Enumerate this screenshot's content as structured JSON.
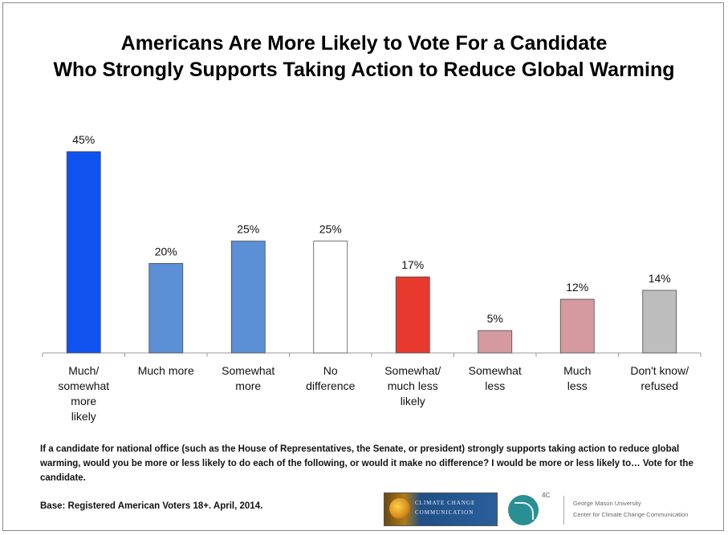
{
  "title": {
    "line1": "Americans Are More Likely to Vote For a Candidate",
    "line2": "Who Strongly Supports Taking Action to Reduce Global Warming"
  },
  "chart_data": {
    "type": "bar",
    "categories": [
      [
        "Much/",
        "somewhat",
        "more",
        "likely"
      ],
      [
        "Much more"
      ],
      [
        "Somewhat",
        "more"
      ],
      [
        "No",
        "difference"
      ],
      [
        "Somewhat/",
        "much less",
        "likely"
      ],
      [
        "Somewhat",
        "less"
      ],
      [
        "Much",
        "less"
      ],
      [
        "Don't know/",
        "refused"
      ]
    ],
    "values": [
      45,
      20,
      25,
      25,
      17,
      5,
      12,
      14
    ],
    "value_labels": [
      "45%",
      "20%",
      "25%",
      "25%",
      "17%",
      "5%",
      "12%",
      "14%"
    ],
    "colors": [
      "#0f52f0",
      "#5b8fd6",
      "#5b8fd6",
      "#ffffff",
      "#e8392e",
      "#d59aa0",
      "#d59aa0",
      "#bdbdbd"
    ],
    "ylim": [
      0,
      45
    ],
    "grid": false
  },
  "question": "If a candidate for national office (such as the House of Representatives, the Senate, or president) strongly supports taking action to reduce global warming, would you be more or less likely to do each of the following, or would it make no difference? I would be more or less likely to… Vote for the candidate.",
  "base": "Base: Registered American Voters 18+. April, 2014.",
  "logos": {
    "climate_line1": "CLIMATE CHANGE",
    "climate_line2": "COMMUNICATION",
    "fourc_label": "4C",
    "gmu_line1": "George Mason University",
    "gmu_line2": "Center for Climate Change Communication"
  }
}
